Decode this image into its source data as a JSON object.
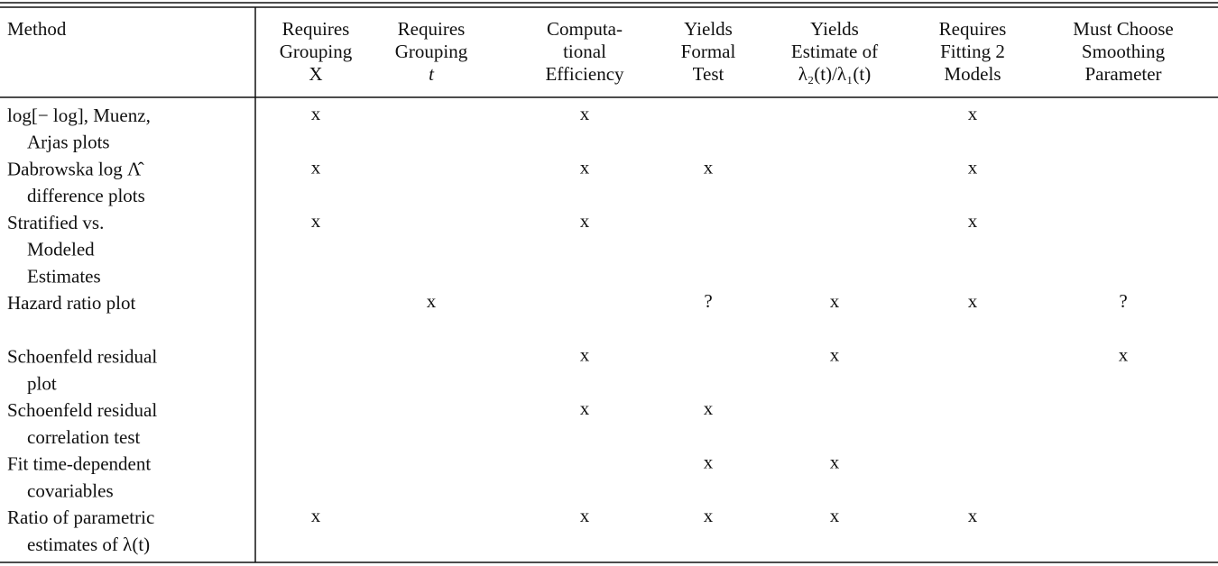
{
  "table": {
    "header": [
      [
        "Method"
      ],
      [
        "Requires",
        "Grouping",
        "X"
      ],
      [
        "Requires",
        "Grouping",
        "t"
      ],
      [
        "Computa-",
        "tional",
        "Efficiency"
      ],
      [
        "Yields",
        "Formal",
        "Test"
      ],
      [
        "Yields",
        "Estimate of",
        "λ₂(t)/λ₁(t)"
      ],
      [
        "Requires",
        "Fitting 2",
        "Models"
      ],
      [
        "Must Choose",
        "Smoothing",
        "Parameter"
      ]
    ],
    "rows": [
      {
        "method": [
          "log[− log], Muenz,",
          "Arjas plots"
        ],
        "cells": [
          "x",
          null,
          "x",
          null,
          null,
          "x",
          null
        ]
      },
      {
        "method": [
          "Dabrowska log Λ̂",
          "difference plots"
        ],
        "cells": [
          "x",
          null,
          "x",
          "x",
          null,
          "x",
          null
        ]
      },
      {
        "method": [
          "Stratified vs.",
          "Modeled",
          "Estimates"
        ],
        "cells": [
          "x",
          null,
          "x",
          null,
          null,
          "x",
          null
        ]
      },
      {
        "method": [
          "Hazard ratio plot"
        ],
        "cells": [
          null,
          "x",
          null,
          "?",
          "x",
          "x",
          "?"
        ]
      },
      {
        "method": [
          "Schoenfeld residual",
          "plot"
        ],
        "cells": [
          null,
          null,
          "x",
          null,
          "x",
          null,
          "x"
        ]
      },
      {
        "method": [
          "Schoenfeld residual",
          "correlation test"
        ],
        "cells": [
          null,
          null,
          "x",
          "x",
          null,
          null,
          null
        ]
      },
      {
        "method": [
          "Fit time-dependent",
          "covariables"
        ],
        "cells": [
          null,
          null,
          null,
          "x",
          "x",
          null,
          null
        ]
      },
      {
        "method": [
          "Ratio of parametric",
          "estimates of λ(t)"
        ],
        "cells": [
          "x",
          null,
          "x",
          "x",
          "x",
          "x",
          null
        ]
      }
    ]
  }
}
